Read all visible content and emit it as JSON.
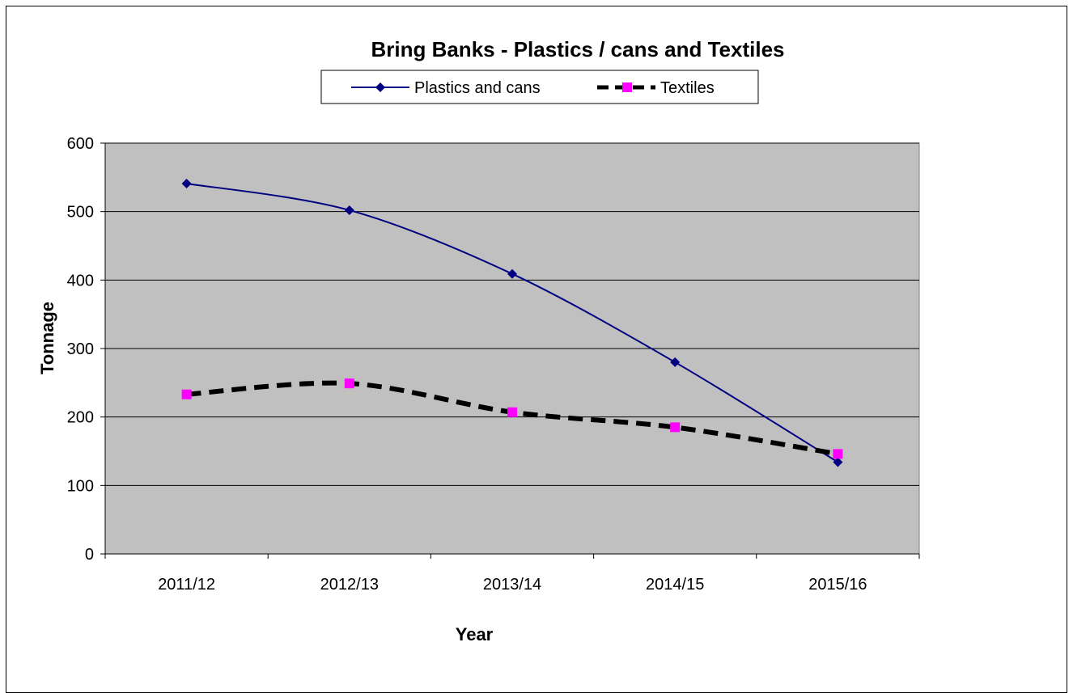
{
  "chart_data": {
    "type": "line",
    "title": "Bring Banks - Plastics / cans and Textiles",
    "xlabel": "Year",
    "ylabel": "Tonnage",
    "categories": [
      "2011/12",
      "2012/13",
      "2013/14",
      "2014/15",
      "2015/16"
    ],
    "y_ticks": [
      "0",
      "100",
      "200",
      "300",
      "400",
      "500",
      "600"
    ],
    "ylim": [
      0,
      600
    ],
    "grid": true,
    "legend_position": "top",
    "plot_background": "#c0c0c0",
    "series": [
      {
        "name": "Plastics and cans",
        "values": [
          541,
          502,
          409,
          280,
          134
        ],
        "color": "#000080",
        "marker": "diamond",
        "line_style": "solid"
      },
      {
        "name": "Textiles",
        "values": [
          233,
          249,
          207,
          185,
          146
        ],
        "color": "#000000",
        "marker_color": "#ff00ff",
        "marker": "square",
        "line_style": "dashed"
      }
    ]
  }
}
